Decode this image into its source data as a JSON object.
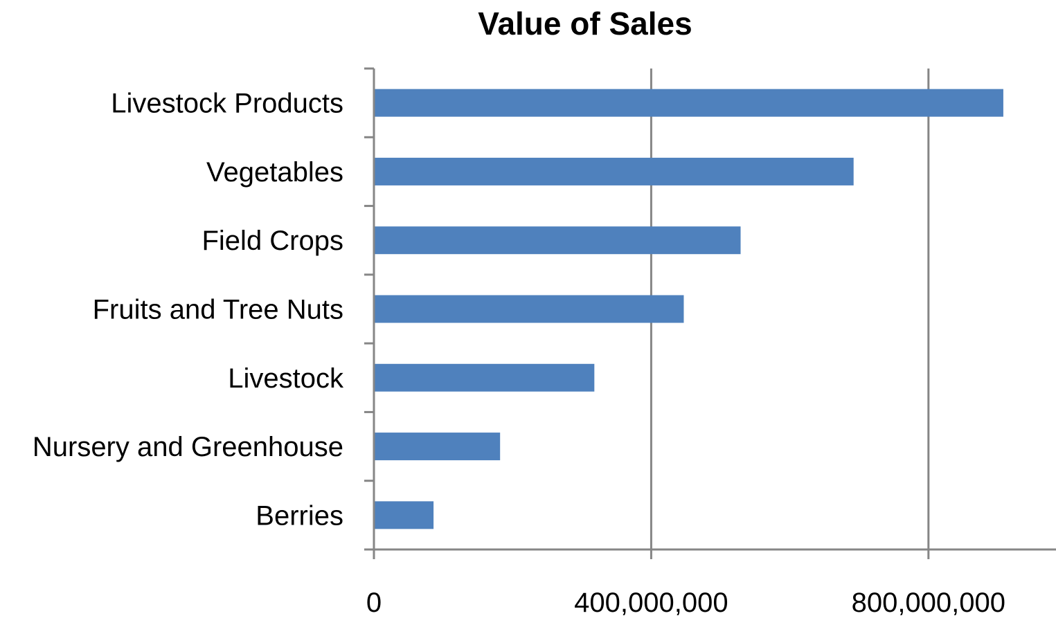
{
  "chart_data": {
    "type": "bar",
    "orientation": "horizontal",
    "title": "Value of Sales",
    "xlabel": "",
    "ylabel": "",
    "categories": [
      "Livestock Products",
      "Vegetables",
      "Field Crops",
      "Fruits and Tree Nuts",
      "Livestock",
      "Nursery and Greenhouse",
      "Berries"
    ],
    "values": [
      908000000,
      692000000,
      529000000,
      447000000,
      318000000,
      182000000,
      86000000
    ],
    "xlim": [
      0,
      984000000
    ],
    "xticks": [
      0,
      400000000,
      800000000
    ],
    "xtick_labels": [
      "0",
      "400,000,000",
      "800,000,000"
    ],
    "grid": "vertical major gridlines",
    "legend": "none",
    "colors": {
      "bar": "#4f81bd",
      "grid": "#868686",
      "axis": "#868686"
    }
  }
}
